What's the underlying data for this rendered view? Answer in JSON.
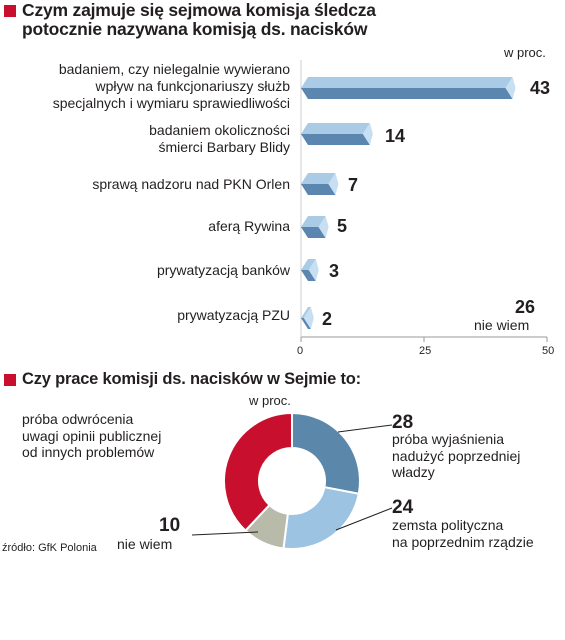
{
  "colors": {
    "accent": "#c8102e",
    "bar_light": "#a9cbe6",
    "bar_dark": "#5a86b0",
    "pie_blue_dark": "#5b87ab",
    "pie_blue_light": "#9cc3e2",
    "pie_gray": "#b8bbaa",
    "pie_red": "#c8102e"
  },
  "chart_data": [
    {
      "type": "bar",
      "title": "Czym zajmuje się sejmowa komisja śledcza potocznie nazywana komisją ds. nacisków",
      "title_lines": [
        "Czym zajmuje się sejmowa komisja śledcza",
        "potocznie nazywana komisją ds. nacisków"
      ],
      "unit": "w proc.",
      "categories": [
        [
          "badaniem, czy nielegalnie wywierano",
          "wpływ na funkcjonariuszy służb",
          "specjalnych i wymiaru sprawiedliwości"
        ],
        [
          "badaniem okoliczności",
          "śmierci Barbary Blidy"
        ],
        [
          "sprawą nadzoru nad PKN Orlen"
        ],
        [
          "aferą Rywina"
        ],
        [
          "prywatyzacją banków"
        ],
        [
          "prywatyzacją PZU"
        ]
      ],
      "values": [
        43,
        14,
        7,
        5,
        3,
        2
      ],
      "value_labels": [
        "43",
        "14",
        "7",
        "5",
        "3",
        "2"
      ],
      "xlim": [
        0,
        50
      ],
      "xticks": [
        "0",
        "25",
        "50"
      ],
      "extra": {
        "value": "26",
        "label": "nie wiem"
      }
    },
    {
      "type": "pie",
      "title": "Czy prace komisji ds. nacisków w Sejmie to:",
      "unit": "w proc.",
      "slices": [
        {
          "value": 28,
          "label": [
            "próba wyjaśnienia",
            "nadużyć poprzedniej",
            "władzy"
          ]
        },
        {
          "value": 24,
          "label": [
            "zemsta polityczna",
            "na poprzednim rządzie"
          ]
        },
        {
          "value": 10,
          "label": [
            "nie wiem"
          ]
        },
        {
          "value": 38,
          "label": [
            "próba odwrócenia",
            "uwagi opinii publicznej",
            "od innych problemów"
          ]
        }
      ]
    }
  ],
  "source": "źródło: GfK Polonia"
}
